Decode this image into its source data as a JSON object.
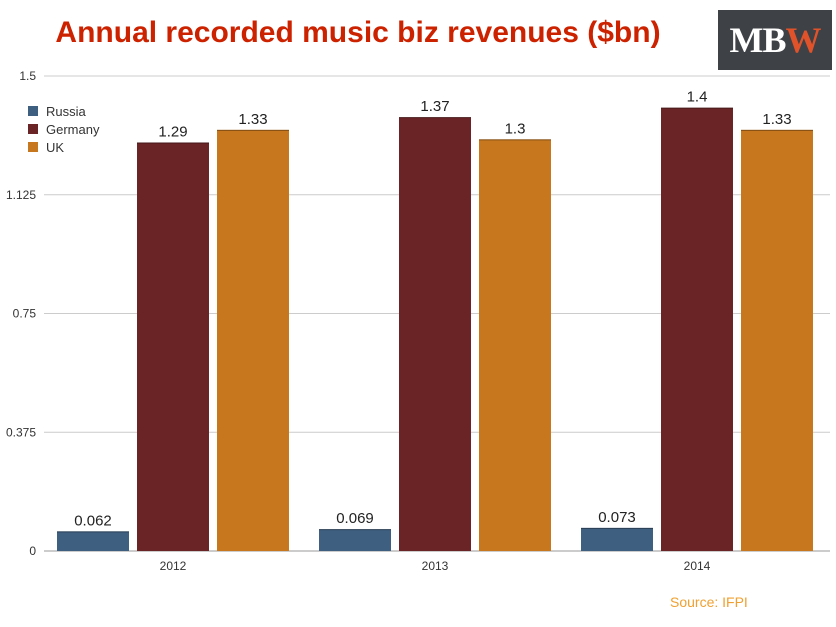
{
  "title": "Annual recorded music biz revenues ($bn)",
  "logo": {
    "m": "M",
    "b": "B",
    "w": "W"
  },
  "source": "Source: IFPI",
  "colors": {
    "Russia": "#3e5f80",
    "Germany": "#6b2426",
    "UK": "#c7771d",
    "grid": "#cccccc",
    "axis_text": "#333333"
  },
  "chart_data": {
    "type": "bar",
    "categories": [
      "2012",
      "2013",
      "2014"
    ],
    "series": [
      {
        "name": "Russia",
        "values": [
          0.062,
          0.069,
          0.073
        ],
        "labels": [
          "0.062",
          "0.069",
          "0.073"
        ]
      },
      {
        "name": "Germany",
        "values": [
          1.29,
          1.37,
          1.4
        ],
        "labels": [
          "1.29",
          "1.37",
          "1.4"
        ]
      },
      {
        "name": "UK",
        "values": [
          1.33,
          1.3,
          1.33
        ],
        "labels": [
          "1.33",
          "1.3",
          "1.33"
        ]
      }
    ],
    "yticks": [
      0,
      0.375,
      0.75,
      1.125,
      1.5
    ],
    "ytick_labels": [
      "0",
      "0.375",
      "0.75",
      "1.125",
      "1.5"
    ],
    "ylim": [
      0,
      1.5
    ],
    "grid": true,
    "legend_position": "top-left"
  }
}
